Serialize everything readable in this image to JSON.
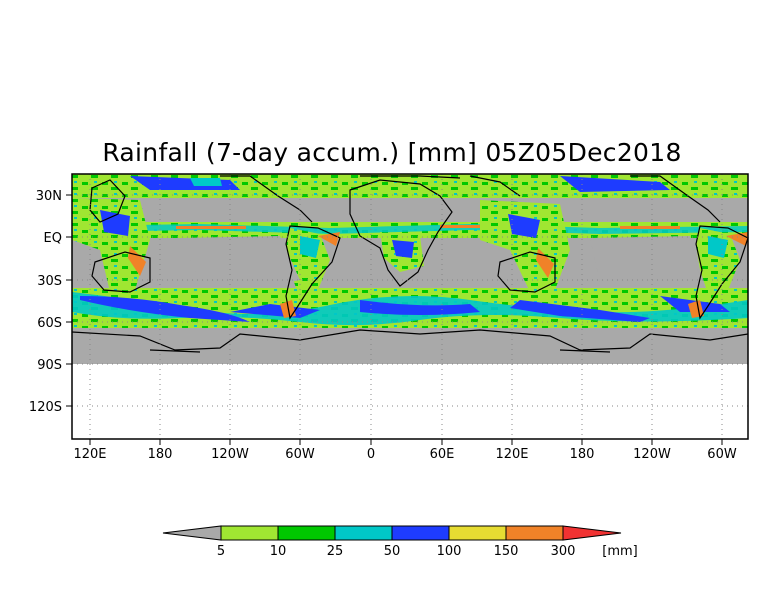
{
  "title": "Rainfall (7-day accum.) [mm] 05Z05Dec2018",
  "map": {
    "y_ticks": [
      "30N",
      "EQ",
      "30S",
      "60S",
      "90S",
      "120S"
    ],
    "x_ticks": [
      "120E",
      "180",
      "120W",
      "60W",
      "0",
      "60E",
      "120E",
      "180",
      "120W",
      "60W"
    ],
    "missing_color": "#a9a9a9",
    "frame_color": "#000000"
  },
  "colorbar": {
    "unit": "[mm]",
    "thresholds": [
      "5",
      "10",
      "25",
      "50",
      "100",
      "150",
      "300"
    ],
    "colors": {
      "below": "#a9a9a9",
      "5-10": "#a0e632",
      "10-25": "#00c800",
      "25-50": "#00c8c8",
      "50-100": "#1e3cff",
      "100-150": "#e6dc32",
      "150-300": "#f08228",
      "above": "#f03232"
    }
  }
}
